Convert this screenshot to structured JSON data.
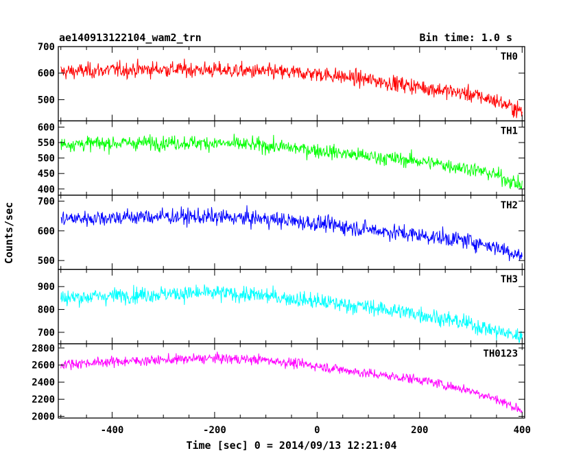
{
  "header": {
    "title": "ae140913122104_wam2_trn",
    "bin_time": "Bin time: 1.0 s"
  },
  "chart_data": {
    "type": "line",
    "title": "ae140913122104_wam2_trn",
    "subtitle": "Bin time: 1.0 s",
    "xlabel": "Time [sec] 0 = 2014/09/13 12:21:04",
    "ylabel": "Counts/sec",
    "xlim": [
      -505,
      405
    ],
    "x_ticks": [
      -400,
      -200,
      0,
      200,
      400
    ],
    "grid": false,
    "panels": [
      {
        "name": "TH0",
        "color": "#ff0000",
        "ylim": [
          420,
          700
        ],
        "y_ticks": [
          500,
          600,
          700
        ],
        "x": [
          -500,
          -400,
          -300,
          -200,
          -100,
          0,
          100,
          200,
          300,
          350,
          400
        ],
        "values": [
          605,
          612,
          615,
          612,
          605,
          598,
          575,
          548,
          520,
          495,
          455
        ],
        "noise": 38
      },
      {
        "name": "TH1",
        "color": "#00ff00",
        "ylim": [
          380,
          620
        ],
        "y_ticks": [
          400,
          450,
          500,
          550,
          600
        ],
        "x": [
          -500,
          -400,
          -300,
          -200,
          -100,
          0,
          100,
          200,
          300,
          350,
          400
        ],
        "values": [
          545,
          548,
          550,
          548,
          540,
          525,
          505,
          490,
          465,
          445,
          410
        ],
        "noise": 30
      },
      {
        "name": "TH2",
        "color": "#0000ff",
        "ylim": [
          470,
          720
        ],
        "y_ticks": [
          500,
          600,
          700
        ],
        "x": [
          -500,
          -400,
          -300,
          -200,
          -100,
          0,
          100,
          200,
          300,
          350,
          400
        ],
        "values": [
          640,
          645,
          648,
          646,
          640,
          625,
          605,
          585,
          565,
          545,
          515
        ],
        "noise": 35
      },
      {
        "name": "TH3",
        "color": "#00ffff",
        "ylim": [
          650,
          975
        ],
        "y_ticks": [
          700,
          800,
          900
        ],
        "x": [
          -500,
          -400,
          -300,
          -200,
          -100,
          0,
          100,
          200,
          300,
          350,
          400
        ],
        "values": [
          850,
          860,
          868,
          872,
          860,
          835,
          810,
          780,
          735,
          705,
          680
        ],
        "noise": 45
      },
      {
        "name": "TH0123",
        "color": "#ff00ff",
        "ylim": [
          1980,
          2850
        ],
        "y_ticks": [
          2000,
          2200,
          2400,
          2600,
          2800
        ],
        "x": [
          -500,
          -400,
          -300,
          -200,
          -100,
          0,
          100,
          200,
          300,
          350,
          400
        ],
        "values": [
          2610,
          2640,
          2660,
          2680,
          2660,
          2590,
          2500,
          2430,
          2300,
          2200,
          2070
        ],
        "noise": 75
      }
    ]
  }
}
